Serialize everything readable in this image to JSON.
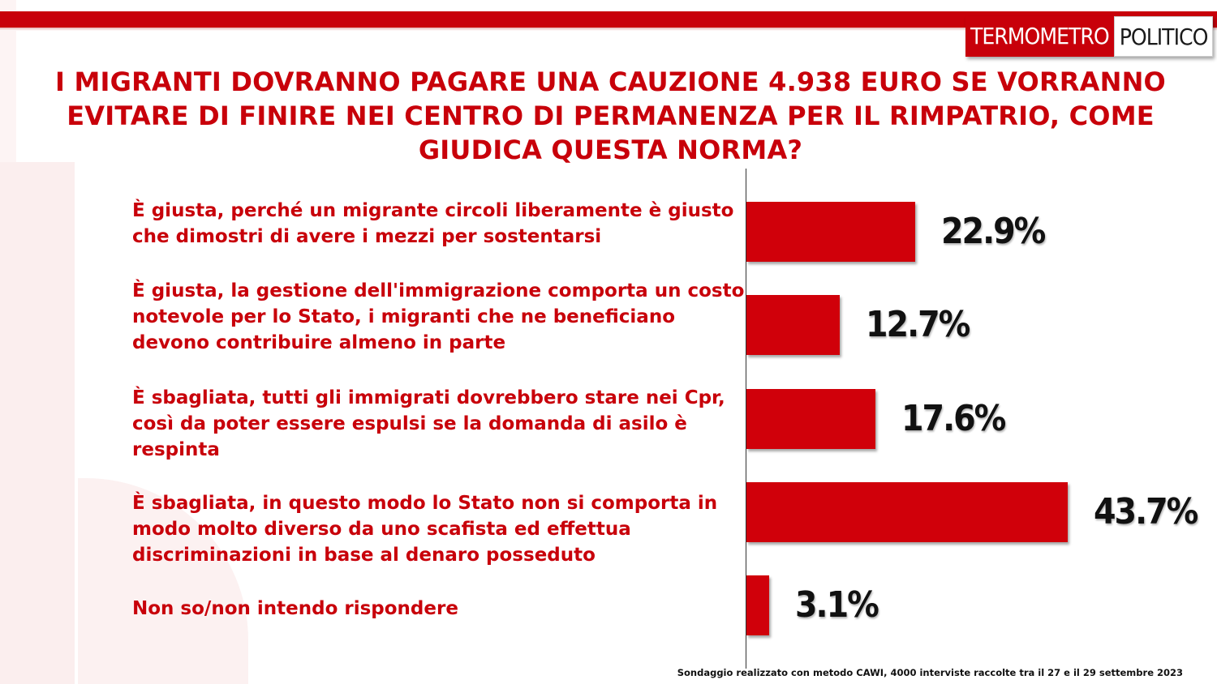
{
  "brand": {
    "logo_red": "TERMOMETRO",
    "logo_white": "POLITICO",
    "accent": "#c8000a"
  },
  "title": "I MIGRANTI DOVRANNO PAGARE UNA CAUZIONE 4.938 EURO SE VORRANNO EVITARE DI FINIRE NEI CENTRO DI PERMANENZA PER IL RIMPATRIO, COME GIUDICA QUESTA NORMA?",
  "footnote": "Sondaggio realizzato con metodo CAWI, 4000 interviste raccolte tra il 27 e il 29 settembre 2023",
  "chart_data": {
    "type": "bar",
    "orientation": "horizontal",
    "title": "I MIGRANTI DOVRANNO PAGARE UNA CAUZIONE 4.938 EURO SE VORRANNO EVITARE DI FINIRE NEI CENTRO DI PERMANENZA PER IL RIMPATRIO, COME GIUDICA QUESTA NORMA?",
    "categories": [
      "È giusta, perché un migrante circoli liberamente è giusto che dimostri di avere i mezzi per sostentarsi",
      "È giusta, la gestione dell'immigrazione comporta un costo notevole per lo Stato, i migranti che ne beneficiano devono contribuire almeno in parte",
      "È sbagliata, tutti gli immigrati dovrebbero stare nei Cpr, così da poter essere espulsi se la domanda di asilo è respinta",
      "È sbagliata, in questo modo lo Stato non si comporta in modo molto diverso da uno scafista ed effettua discriminazioni in base al denaro posseduto",
      "Non so/non intendo rispondere"
    ],
    "values": [
      22.9,
      12.7,
      17.6,
      43.7,
      3.1
    ],
    "value_labels": [
      "22.9%",
      "12.7%",
      "17.6%",
      "43.7%",
      "3.1%"
    ],
    "unit": "%",
    "bar_color": "#d0000a",
    "grid": false,
    "legend": false
  }
}
